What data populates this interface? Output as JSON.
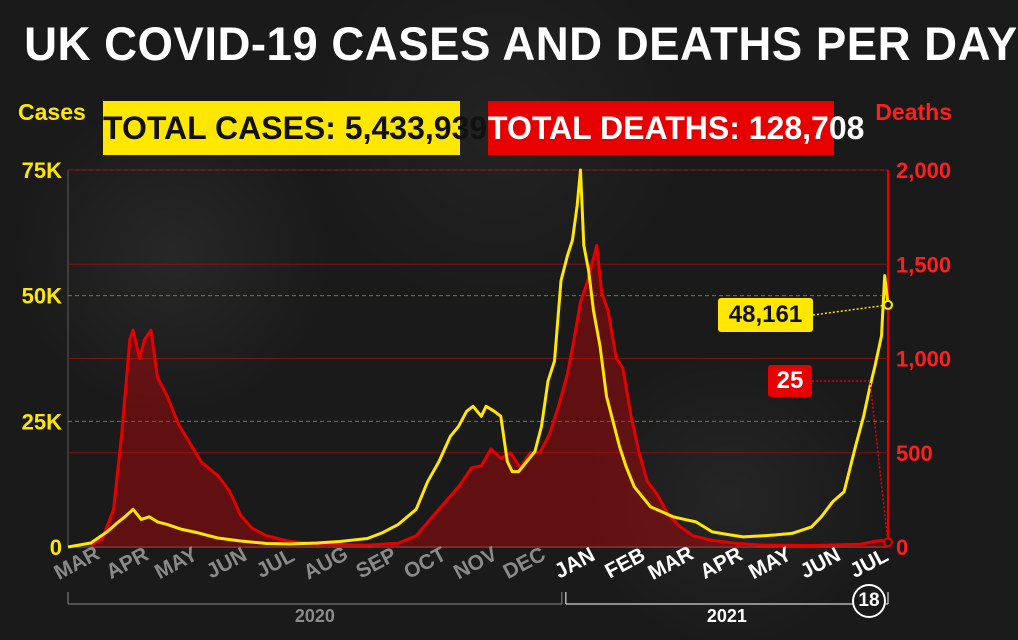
{
  "title": "UK COVID-19 CASES AND DEATHS PER DAY",
  "left_axis_label": "Cases",
  "right_axis_label": "Deaths",
  "total_cases_banner": "TOTAL CASES: 5,433,939",
  "total_deaths_banner": "TOTAL DEATHS: 128,708",
  "latest_cases_label": "48,161",
  "latest_deaths_label": "25",
  "latest_date_badge": "18",
  "colors": {
    "cases": "#ffe700",
    "deaths": "#e60000",
    "background": "#1a1a1a"
  },
  "chart_data": {
    "type": "line",
    "title": "UK COVID-19 CASES AND DEATHS PER DAY",
    "x_range": [
      "2020-03-01",
      "2021-07-18"
    ],
    "left_axis": {
      "label": "Cases",
      "min": 0,
      "max": 75000,
      "ticks": [
        0,
        25000,
        50000,
        75000
      ],
      "tick_labels": [
        "0",
        "25K",
        "50K",
        "75K"
      ]
    },
    "right_axis": {
      "label": "Deaths",
      "min": 0,
      "max": 2000,
      "ticks": [
        0,
        500,
        1000,
        1500,
        2000
      ],
      "tick_labels": [
        "0",
        "500",
        "1,000",
        "1,500",
        "2,000"
      ]
    },
    "months": [
      {
        "label": "MAR",
        "date": "2020-03-01",
        "year": "2020"
      },
      {
        "label": "APR",
        "date": "2020-04-01",
        "year": "2020"
      },
      {
        "label": "MAY",
        "date": "2020-05-01",
        "year": "2020"
      },
      {
        "label": "JUN",
        "date": "2020-06-01",
        "year": "2020"
      },
      {
        "label": "JUL",
        "date": "2020-07-01",
        "year": "2020"
      },
      {
        "label": "AUG",
        "date": "2020-08-01",
        "year": "2020"
      },
      {
        "label": "SEP",
        "date": "2020-09-01",
        "year": "2020"
      },
      {
        "label": "OCT",
        "date": "2020-10-01",
        "year": "2020"
      },
      {
        "label": "NOV",
        "date": "2020-11-01",
        "year": "2020"
      },
      {
        "label": "DEC",
        "date": "2020-12-01",
        "year": "2020"
      },
      {
        "label": "JAN",
        "date": "2021-01-01",
        "year": "2021"
      },
      {
        "label": "FEB",
        "date": "2021-02-01",
        "year": "2021"
      },
      {
        "label": "MAR",
        "date": "2021-03-01",
        "year": "2021"
      },
      {
        "label": "APR",
        "date": "2021-04-01",
        "year": "2021"
      },
      {
        "label": "MAY",
        "date": "2021-05-01",
        "year": "2021"
      },
      {
        "label": "JUN",
        "date": "2021-06-01",
        "year": "2021"
      },
      {
        "label": "JUL",
        "date": "2021-07-01",
        "year": "2021"
      }
    ],
    "years": [
      "2020",
      "2021"
    ],
    "grid": true,
    "series": [
      {
        "name": "Cases",
        "axis": "left",
        "x": [
          "2020-03-01",
          "2020-03-15",
          "2020-03-25",
          "2020-04-01",
          "2020-04-05",
          "2020-04-10",
          "2020-04-15",
          "2020-04-20",
          "2020-04-25",
          "2020-05-01",
          "2020-05-10",
          "2020-05-20",
          "2020-06-01",
          "2020-06-15",
          "2020-07-01",
          "2020-07-15",
          "2020-08-01",
          "2020-08-15",
          "2020-09-01",
          "2020-09-10",
          "2020-09-20",
          "2020-10-01",
          "2020-10-08",
          "2020-10-15",
          "2020-10-22",
          "2020-10-27",
          "2020-11-01",
          "2020-11-05",
          "2020-11-10",
          "2020-11-13",
          "2020-11-18",
          "2020-11-22",
          "2020-11-26",
          "2020-11-29",
          "2020-12-03",
          "2020-12-08",
          "2020-12-13",
          "2020-12-17",
          "2020-12-21",
          "2020-12-25",
          "2020-12-29",
          "2021-01-02",
          "2021-01-05",
          "2021-01-08",
          "2021-01-10",
          "2021-01-12",
          "2021-01-15",
          "2021-01-18",
          "2021-01-22",
          "2021-01-26",
          "2021-01-30",
          "2021-02-03",
          "2021-02-07",
          "2021-02-12",
          "2021-02-17",
          "2021-02-22",
          "2021-03-01",
          "2021-03-08",
          "2021-03-15",
          "2021-03-22",
          "2021-04-01",
          "2021-04-10",
          "2021-04-20",
          "2021-05-01",
          "2021-05-10",
          "2021-05-20",
          "2021-06-01",
          "2021-06-07",
          "2021-06-14",
          "2021-06-21",
          "2021-06-28",
          "2021-07-03",
          "2021-07-07",
          "2021-07-10",
          "2021-07-14",
          "2021-07-16",
          "2021-07-18"
        ],
        "y": [
          0,
          800,
          3000,
          5000,
          6000,
          7500,
          5500,
          6000,
          5000,
          4500,
          3500,
          2800,
          1800,
          1200,
          700,
          600,
          800,
          1100,
          1700,
          2800,
          4500,
          7500,
          13000,
          17000,
          22000,
          24000,
          27000,
          28000,
          26000,
          28000,
          27000,
          26000,
          17000,
          15000,
          15000,
          17000,
          19000,
          24000,
          33000,
          37000,
          53000,
          58000,
          61000,
          68000,
          75000,
          60000,
          55000,
          47000,
          40000,
          30000,
          25000,
          20000,
          16000,
          12000,
          10000,
          8000,
          7000,
          6000,
          5500,
          5000,
          3000,
          2500,
          2000,
          2200,
          2400,
          2700,
          4000,
          6000,
          9000,
          11000,
          20000,
          26000,
          32000,
          36000,
          42000,
          54000,
          48161
        ]
      },
      {
        "name": "Deaths",
        "axis": "right",
        "x": [
          "2020-03-15",
          "2020-03-22",
          "2020-03-29",
          "2020-04-03",
          "2020-04-06",
          "2020-04-08",
          "2020-04-10",
          "2020-04-14",
          "2020-04-17",
          "2020-04-21",
          "2020-04-25",
          "2020-05-01",
          "2020-05-08",
          "2020-05-15",
          "2020-05-22",
          "2020-06-01",
          "2020-06-08",
          "2020-06-15",
          "2020-06-22",
          "2020-07-01",
          "2020-07-15",
          "2020-08-01",
          "2020-09-01",
          "2020-09-20",
          "2020-10-01",
          "2020-10-10",
          "2020-10-20",
          "2020-10-28",
          "2020-11-04",
          "2020-11-10",
          "2020-11-16",
          "2020-11-22",
          "2020-11-28",
          "2020-12-04",
          "2020-12-10",
          "2020-12-16",
          "2020-12-22",
          "2020-12-28",
          "2021-01-02",
          "2021-01-06",
          "2021-01-10",
          "2021-01-14",
          "2021-01-17",
          "2021-01-20",
          "2021-01-23",
          "2021-01-27",
          "2021-02-01",
          "2021-02-05",
          "2021-02-10",
          "2021-02-15",
          "2021-02-20",
          "2021-02-26",
          "2021-03-05",
          "2021-03-12",
          "2021-03-20",
          "2021-04-01",
          "2021-04-15",
          "2021-05-01",
          "2021-06-01",
          "2021-07-01",
          "2021-07-10",
          "2021-07-14",
          "2021-07-18"
        ],
        "y": [
          10,
          40,
          200,
          600,
          900,
          1100,
          1150,
          1000,
          1100,
          1150,
          900,
          800,
          650,
          550,
          450,
          380,
          300,
          170,
          100,
          60,
          30,
          15,
          10,
          20,
          60,
          150,
          250,
          330,
          420,
          430,
          520,
          470,
          500,
          420,
          500,
          500,
          600,
          760,
          920,
          1100,
          1300,
          1400,
          1500,
          1600,
          1350,
          1250,
          1000,
          950,
          700,
          500,
          350,
          280,
          170,
          110,
          60,
          35,
          20,
          10,
          8,
          15,
          30,
          35,
          25
        ]
      }
    ]
  }
}
